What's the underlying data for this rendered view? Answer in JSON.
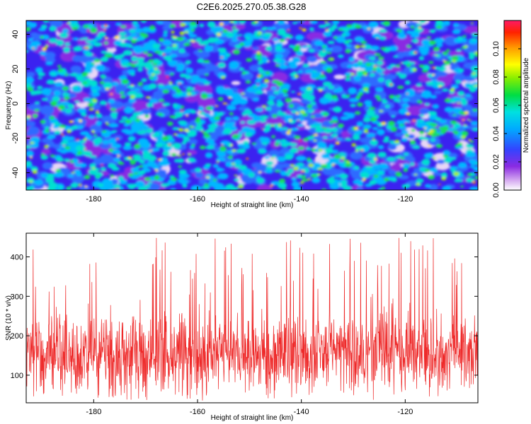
{
  "title": "C2E6.2025.270.05.38.G28",
  "colors": {
    "snr_line": "#ee2a2a",
    "frame": "#000000",
    "background": "#ffffff"
  },
  "chart_data": [
    {
      "type": "heatmap",
      "name": "spectrogram",
      "xlabel": "Height of straight line (km)",
      "ylabel": "Frequency (Hz)",
      "xlim": [
        -193,
        -106
      ],
      "ylim": [
        -50,
        48
      ],
      "x_ticks": [
        -180,
        -160,
        -140,
        -120
      ],
      "x_tick_labels": [
        "-180",
        "-160",
        "-140",
        "-120"
      ],
      "y_ticks": [
        -40,
        -20,
        0,
        20,
        40
      ],
      "y_tick_labels": [
        "-40",
        "-20",
        "0",
        "20",
        "40"
      ],
      "colorbar": {
        "label": "Normalized spectral amplitude",
        "range": [
          0.0,
          0.12
        ],
        "ticks": [
          0.0,
          0.02,
          0.04,
          0.06,
          0.08,
          0.1
        ],
        "tick_labels": [
          "0.00",
          "0.02",
          "0.04",
          "0.06",
          "0.08",
          "0.10"
        ],
        "colormap": "rainbow (white-violet-blue-cyan-green-yellow-red)"
      },
      "description": "dense speckle of spectral peaks mostly 0.02-0.06 with sparse maxima near 0.10-0.12"
    },
    {
      "type": "line",
      "name": "snr",
      "xlabel": "Height of straight line (km)",
      "ylabel": "SNR (10 * v/v)",
      "xlim": [
        -193,
        -106
      ],
      "ylim": [
        30,
        460
      ],
      "x_ticks": [
        -180,
        -160,
        -140,
        -120
      ],
      "x_tick_labels": [
        "-180",
        "-160",
        "-140",
        "-120"
      ],
      "y_ticks": [
        100,
        200,
        300,
        400
      ],
      "y_tick_labels": [
        "100",
        "200",
        "300",
        "400"
      ],
      "series": [
        {
          "name": "SNR",
          "typical_range": [
            60,
            260
          ],
          "mean": 150,
          "max": 450
        }
      ]
    }
  ]
}
